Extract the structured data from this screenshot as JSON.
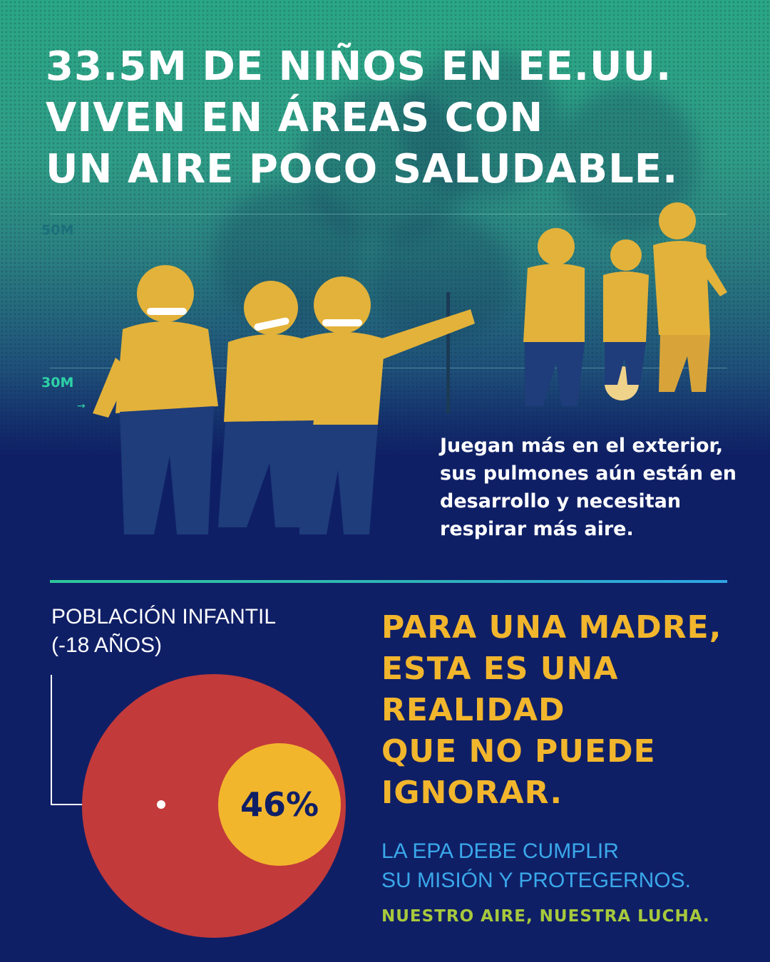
{
  "headline": {
    "lines": [
      "33.5M DE NIÑOS EN EE.UU.",
      "VIVEN EN ÁREAS CON",
      "UN AIRE POCO SALUDABLE."
    ]
  },
  "scale": {
    "top_label": "50M",
    "mid_label": "30M",
    "arrow": "→"
  },
  "photo_text": "Juegan más en el exterior, sus pulmones aún están en desarrollo y necesitan respirar más aire.",
  "population": {
    "label_line1": "POBLACIÓN INFANTIL",
    "label_line2": "(-18 AÑOS)",
    "percent_label": "46%",
    "percent_value": 46
  },
  "message": {
    "lines": [
      "PARA UNA MADRE,",
      "ESTA ES UNA",
      "REALIDAD",
      "QUE NO PUEDE",
      "IGNORAR."
    ]
  },
  "epa": {
    "lines": [
      "LA EPA DEBE CUMPLIR",
      "SU MISIÓN Y PROTEGERNOS."
    ]
  },
  "slogan": "NUESTRO AIRE, NUESTRA LUCHA.",
  "colors": {
    "navy": "#0f1f66",
    "teal": "#2aa784",
    "yellow": "#f2b62d",
    "red": "#c23a3a",
    "blue": "#3aa8ea",
    "green": "#a7c93c"
  }
}
